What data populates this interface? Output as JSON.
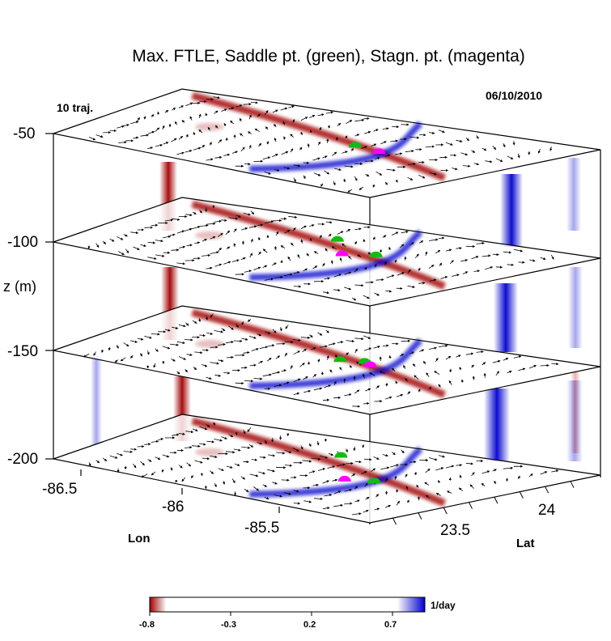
{
  "chart_data": {
    "type": "3d-stacked-slices",
    "title": "Max. FTLE, Saddle pt. (green), Stagn. pt. (magenta)",
    "date": "06/10/2010",
    "trajectories_label": "10 traj.",
    "zlabel": "z  (m)",
    "xlabel": "Lon",
    "ylabel": "Lat",
    "z_ticks": [
      "-50",
      "-100",
      "-150",
      "-200"
    ],
    "lon_ticks": [
      "-86.5",
      "-86",
      "-85.5"
    ],
    "lat_ticks": [
      "24",
      "23.5"
    ],
    "colorbar": {
      "ticks": [
        "-0.8",
        "-0.3",
        "0.2",
        "0.7"
      ],
      "range": [
        -0.8,
        0.9
      ],
      "unit": "1/day",
      "low_color": "#a00000",
      "high_color": "#0000cc"
    },
    "layers": [
      {
        "depth": -50,
        "saddle_points": [
          [
            0.62,
            0.55
          ]
        ],
        "stagnation_points": [
          [
            0.7,
            0.52
          ]
        ]
      },
      {
        "depth": -100,
        "saddle_points": [
          [
            0.66,
            0.58
          ],
          [
            0.5,
            0.7
          ]
        ],
        "stagnation_points": [
          [
            0.6,
            0.52
          ]
        ]
      },
      {
        "depth": -150,
        "saddle_points": [
          [
            0.58,
            0.55
          ],
          [
            0.63,
            0.58
          ]
        ],
        "stagnation_points": [
          [
            0.66,
            0.55
          ]
        ]
      },
      {
        "depth": -200,
        "saddle_points": [
          [
            0.72,
            0.46
          ],
          [
            0.5,
            0.72
          ]
        ],
        "stagnation_points": [
          [
            0.66,
            0.42
          ]
        ]
      }
    ]
  }
}
